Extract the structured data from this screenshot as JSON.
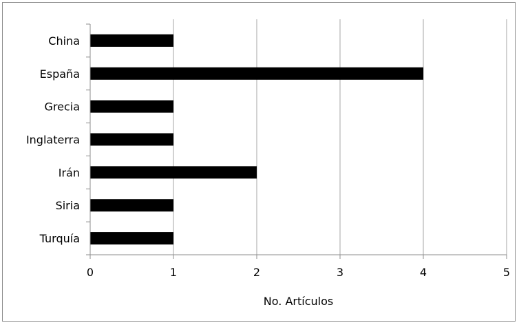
{
  "chart_data": {
    "type": "bar",
    "orientation": "horizontal",
    "categories": [
      "China",
      "España",
      "Grecia",
      "Inglaterra",
      "Irán",
      "Siria",
      "Turquía"
    ],
    "values": [
      1,
      4,
      1,
      1,
      2,
      1,
      1
    ],
    "xlabel": "No. Artículos",
    "ylabel": "",
    "xlim": [
      0,
      5
    ],
    "xticks": [
      "0",
      "1",
      "2",
      "3",
      "4",
      "5"
    ],
    "grid": "vertical",
    "bar_color": "#000000"
  }
}
